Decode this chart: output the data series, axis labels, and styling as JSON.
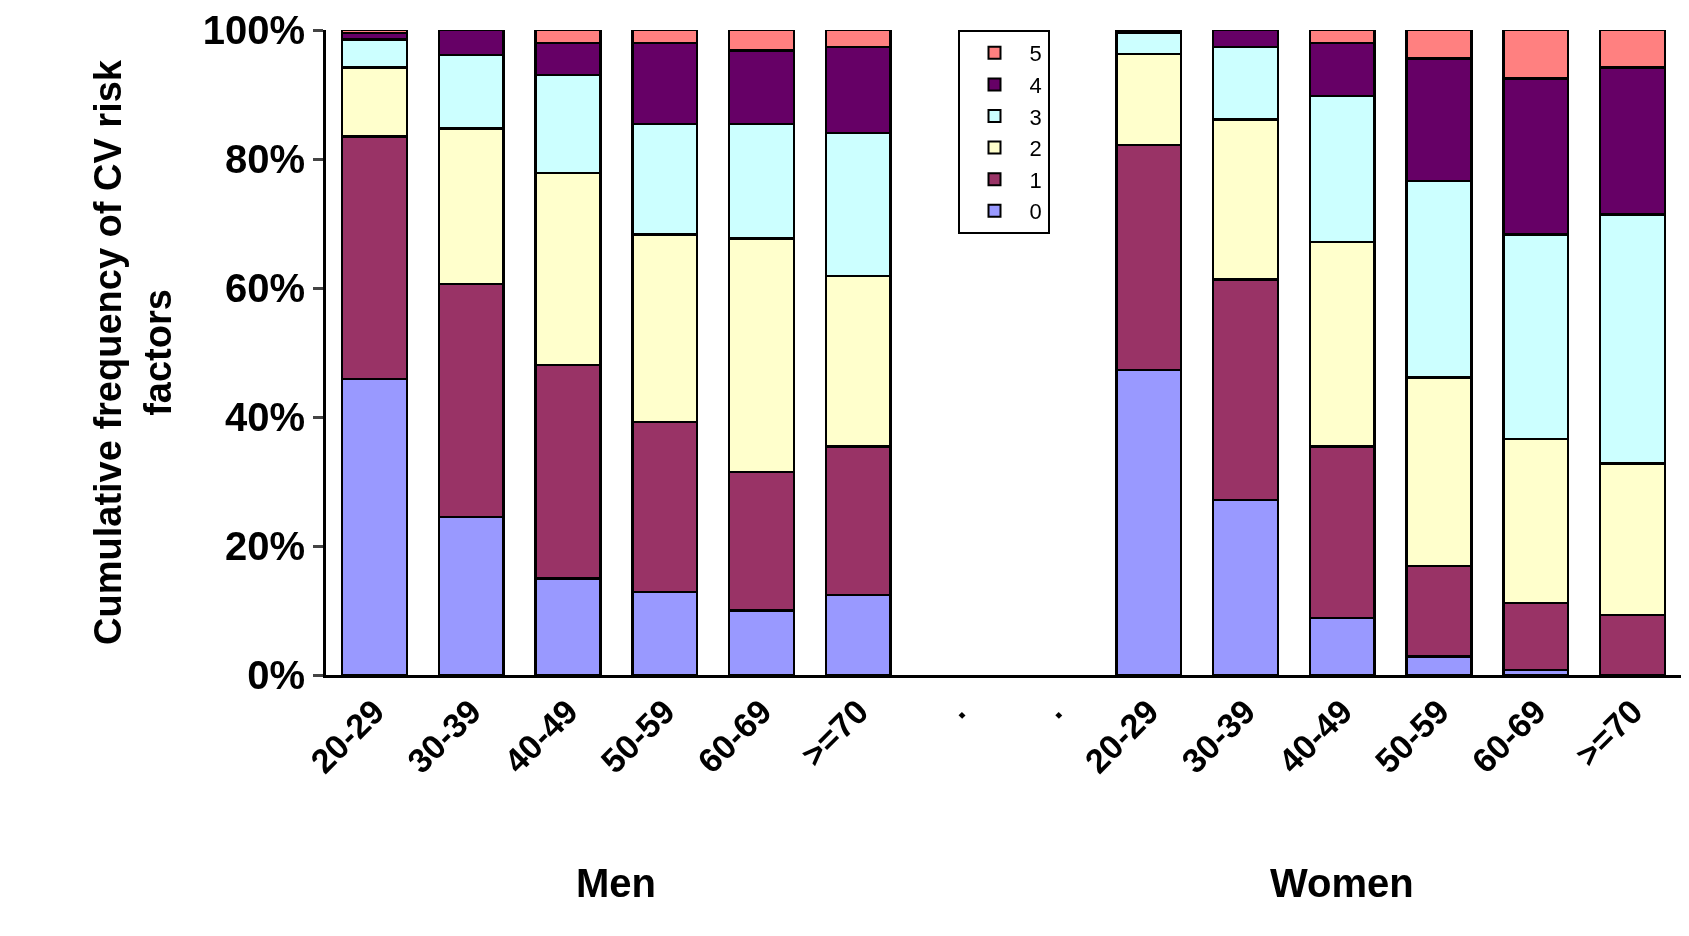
{
  "chart_data": {
    "type": "bar",
    "stacked": true,
    "ylabel": "Cumulative frequency of CV risk\nfactors",
    "categories": [
      "20-29",
      "30-39",
      "40-49",
      "50-59",
      "60-69",
      ">=70",
      ".",
      ".",
      "20-29",
      "30-39",
      "40-49",
      "50-59",
      "60-69",
      ">=70"
    ],
    "series": [
      {
        "name": "0",
        "color": "#9999ff",
        "values": [
          45.9,
          24.5,
          15.0,
          12.9,
          10.0,
          12.4,
          null,
          null,
          47.3,
          27.1,
          8.8,
          2.9,
          0.8,
          null
        ]
      },
      {
        "name": "1",
        "color": "#993366",
        "values": [
          37.6,
          36.1,
          33.1,
          26.3,
          21.5,
          23.0,
          null,
          null,
          34.9,
          34.2,
          26.6,
          14.0,
          10.4,
          9.3
        ]
      },
      {
        "name": "2",
        "color": "#ffffcc",
        "values": [
          10.7,
          24.1,
          29.7,
          29.1,
          36.2,
          26.5,
          null,
          null,
          14.1,
          24.8,
          31.7,
          29.2,
          25.4,
          23.5
        ]
      },
      {
        "name": "3",
        "color": "#ccffff",
        "values": [
          4.3,
          11.4,
          15.2,
          17.1,
          17.7,
          22.1,
          null,
          null,
          3.3,
          11.3,
          22.7,
          30.5,
          31.7,
          38.6
        ]
      },
      {
        "name": "4",
        "color": "#660066",
        "values": [
          1.0,
          3.9,
          5.0,
          12.6,
          11.4,
          13.4,
          null,
          null,
          0.4,
          2.6,
          8.2,
          19.0,
          24.2,
          22.8
        ]
      },
      {
        "name": "5",
        "color": "#ff8080",
        "values": [
          0.5,
          null,
          2.0,
          2.0,
          3.2,
          2.6,
          null,
          null,
          null,
          null,
          2.0,
          4.4,
          7.5,
          5.8
        ]
      }
    ],
    "ylim": [
      0,
      100
    ],
    "yticks": [
      {
        "value": 0,
        "label": "0%"
      },
      {
        "value": 20,
        "label": "20%"
      },
      {
        "value": 40,
        "label": "40%"
      },
      {
        "value": 60,
        "label": "60%"
      },
      {
        "value": 80,
        "label": "80%"
      },
      {
        "value": 100,
        "label": "100%"
      }
    ],
    "annotations": [
      "Men",
      "Women"
    ],
    "legend": "top",
    "grid": false
  }
}
